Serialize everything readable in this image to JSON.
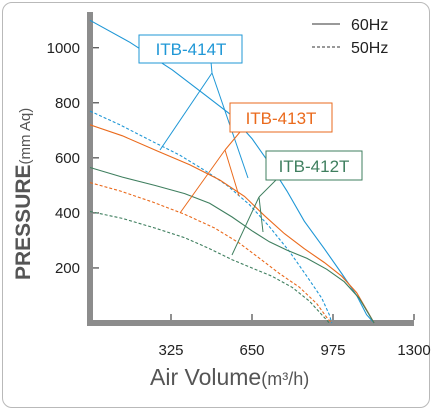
{
  "chart_data": {
    "type": "line",
    "xlabel": "Air Volume",
    "xlabel_unit": "(m³/h)",
    "ylabel": "PRESSURE",
    "ylabel_unit": "(mm Aq)",
    "xlim": [
      0,
      1300
    ],
    "ylim": [
      0,
      1130
    ],
    "x_ticks": [
      325,
      650,
      975,
      1300
    ],
    "y_ticks": [
      200,
      400,
      600,
      800,
      1000
    ],
    "grid": false,
    "legend_position": "top-right",
    "legend": [
      {
        "label": "60Hz",
        "style": "solid"
      },
      {
        "label": "50Hz",
        "style": "dashed"
      }
    ],
    "series": [
      {
        "name": "ITB-414T",
        "frequency": "60Hz",
        "color": "#1f97d6",
        "style": "solid",
        "points": [
          [
            0,
            1100
          ],
          [
            160,
            1020
          ],
          [
            330,
            920
          ],
          [
            460,
            830
          ],
          [
            560,
            760
          ],
          [
            650,
            670
          ],
          [
            720,
            580
          ],
          [
            790,
            480
          ],
          [
            860,
            370
          ],
          [
            940,
            270
          ],
          [
            1010,
            180
          ],
          [
            1070,
            100
          ],
          [
            1110,
            30
          ],
          [
            1140,
            0
          ]
        ]
      },
      {
        "name": "ITB-414T",
        "frequency": "50Hz",
        "color": "#1f97d6",
        "style": "dashed",
        "points": [
          [
            0,
            770
          ],
          [
            120,
            720
          ],
          [
            250,
            660
          ],
          [
            360,
            610
          ],
          [
            460,
            555
          ],
          [
            550,
            500
          ],
          [
            640,
            430
          ],
          [
            720,
            350
          ],
          [
            800,
            260
          ],
          [
            870,
            170
          ],
          [
            930,
            90
          ],
          [
            960,
            30
          ],
          [
            970,
            0
          ]
        ]
      },
      {
        "name": "ITB-413T",
        "frequency": "60Hz",
        "color": "#ea6a1c",
        "style": "solid",
        "points": [
          [
            0,
            720
          ],
          [
            130,
            680
          ],
          [
            270,
            625
          ],
          [
            400,
            575
          ],
          [
            520,
            520
          ],
          [
            620,
            460
          ],
          [
            700,
            390
          ],
          [
            780,
            325
          ],
          [
            860,
            270
          ],
          [
            940,
            220
          ],
          [
            1010,
            170
          ],
          [
            1070,
            110
          ],
          [
            1115,
            40
          ],
          [
            1140,
            0
          ]
        ]
      },
      {
        "name": "ITB-413T",
        "frequency": "50Hz",
        "color": "#ea6a1c",
        "style": "dashed",
        "points": [
          [
            0,
            510
          ],
          [
            120,
            480
          ],
          [
            250,
            440
          ],
          [
            380,
            395
          ],
          [
            500,
            345
          ],
          [
            600,
            290
          ],
          [
            680,
            235
          ],
          [
            760,
            180
          ],
          [
            840,
            130
          ],
          [
            910,
            70
          ],
          [
            950,
            20
          ],
          [
            970,
            0
          ]
        ]
      },
      {
        "name": "ITB-412T",
        "frequency": "60Hz",
        "color": "#3f7f5f",
        "style": "solid",
        "points": [
          [
            0,
            565
          ],
          [
            130,
            530
          ],
          [
            260,
            500
          ],
          [
            380,
            470
          ],
          [
            480,
            435
          ],
          [
            570,
            385
          ],
          [
            650,
            335
          ],
          [
            720,
            295
          ],
          [
            790,
            265
          ],
          [
            870,
            235
          ],
          [
            950,
            195
          ],
          [
            1020,
            150
          ],
          [
            1080,
            90
          ],
          [
            1120,
            30
          ],
          [
            1140,
            0
          ]
        ]
      },
      {
        "name": "ITB-412T",
        "frequency": "50Hz",
        "color": "#3f7f5f",
        "style": "dashed",
        "points": [
          [
            0,
            405
          ],
          [
            130,
            380
          ],
          [
            260,
            345
          ],
          [
            380,
            310
          ],
          [
            480,
            270
          ],
          [
            570,
            230
          ],
          [
            650,
            200
          ],
          [
            730,
            170
          ],
          [
            810,
            130
          ],
          [
            880,
            80
          ],
          [
            930,
            30
          ],
          [
            960,
            0
          ]
        ]
      }
    ],
    "callouts": [
      {
        "text": "ITB-414T",
        "color": "#1f97d6",
        "target_series": 0
      },
      {
        "text": "ITB-413T",
        "color": "#ea6a1c",
        "target_series": 2
      },
      {
        "text": "ITB-412T",
        "color": "#3f7f5f",
        "target_series": 4
      }
    ]
  }
}
